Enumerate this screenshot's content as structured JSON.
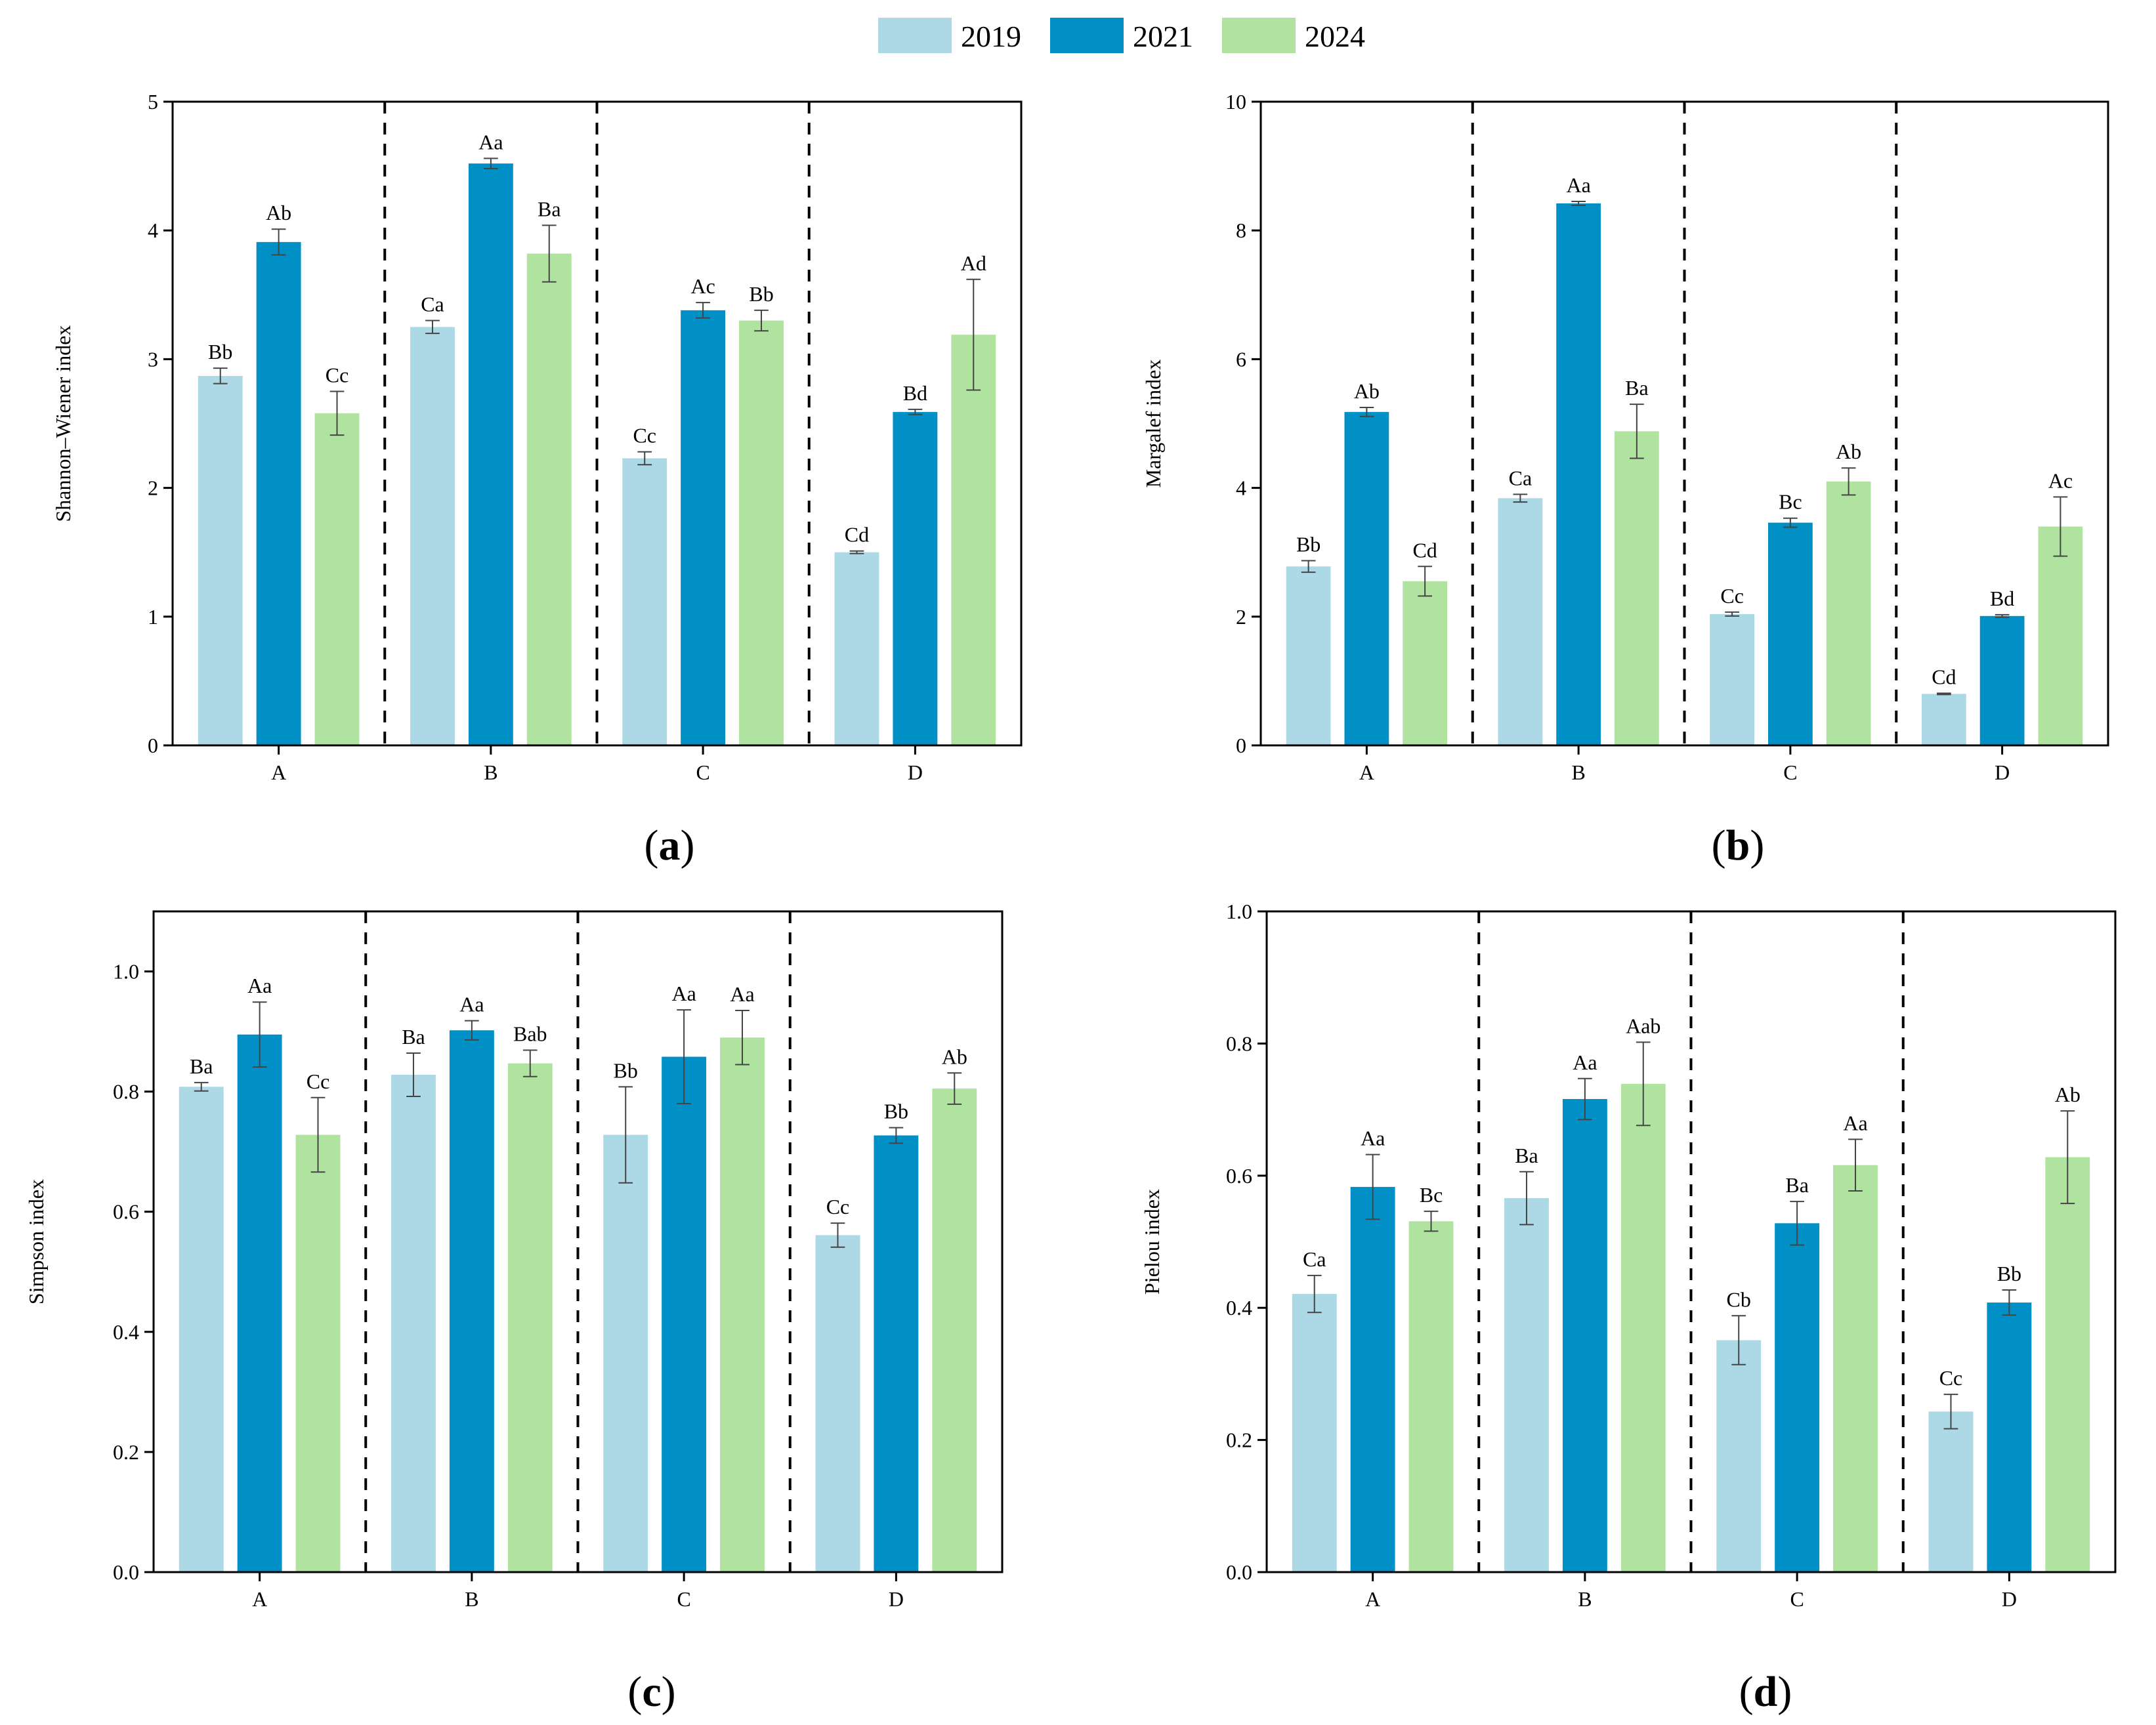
{
  "colors": {
    "2019": "#add8e6",
    "2021": "#0090c6",
    "2024": "#b0e3a0"
  },
  "legend": [
    {
      "label": "2019",
      "color": "#add8e6"
    },
    {
      "label": "2021",
      "color": "#0090c6"
    },
    {
      "label": "2024",
      "color": "#b0e3a0"
    }
  ],
  "chart_data": [
    {
      "type": "bar",
      "panel": "a",
      "panel_label": "a",
      "ylabel": "Shannon–Wiener index",
      "ylim": [
        0,
        5
      ],
      "yticks": [
        0,
        1,
        2,
        3,
        4,
        5
      ],
      "tick_decimals": 0,
      "categories": [
        "A",
        "B",
        "C",
        "D"
      ],
      "series": [
        {
          "name": "2019",
          "values": [
            2.87,
            3.25,
            2.23,
            1.5
          ],
          "errors": [
            0.06,
            0.05,
            0.05,
            0.01
          ],
          "labels": [
            "Bb",
            "Ca",
            "Cc",
            "Cd"
          ]
        },
        {
          "name": "2021",
          "values": [
            3.91,
            4.52,
            3.38,
            2.59
          ],
          "errors": [
            0.1,
            0.04,
            0.06,
            0.02
          ],
          "labels": [
            "Ab",
            "Aa",
            "Ac",
            "Bd"
          ]
        },
        {
          "name": "2024",
          "values": [
            2.58,
            3.82,
            3.3,
            3.19
          ],
          "errors": [
            0.17,
            0.22,
            0.08,
            0.43
          ],
          "labels": [
            "Cc",
            "Ba",
            "Bb",
            "Ad"
          ]
        }
      ]
    },
    {
      "type": "bar",
      "panel": "b",
      "panel_label": "b",
      "ylabel": "Margalef index",
      "ylim": [
        0,
        10
      ],
      "yticks": [
        0,
        2,
        4,
        6,
        8,
        10
      ],
      "tick_decimals": 0,
      "categories": [
        "A",
        "B",
        "C",
        "D"
      ],
      "series": [
        {
          "name": "2019",
          "values": [
            2.78,
            3.84,
            2.04,
            0.8
          ],
          "errors": [
            0.09,
            0.06,
            0.03,
            0.01
          ],
          "labels": [
            "Bb",
            "Ca",
            "Cc",
            "Cd"
          ]
        },
        {
          "name": "2021",
          "values": [
            5.18,
            8.42,
            3.46,
            2.01
          ],
          "errors": [
            0.07,
            0.03,
            0.07,
            0.02
          ],
          "labels": [
            "Ab",
            "Aa",
            "Bc",
            "Bd"
          ]
        },
        {
          "name": "2024",
          "values": [
            2.55,
            4.88,
            4.1,
            3.4
          ],
          "errors": [
            0.23,
            0.42,
            0.21,
            0.46
          ],
          "labels": [
            "Cd",
            "Ba",
            "Ab",
            "Ac"
          ]
        }
      ]
    },
    {
      "type": "bar",
      "panel": "c",
      "panel_label": "c",
      "ylabel": "Simpson index",
      "ylim": [
        0,
        1.1
      ],
      "yticks": [
        0.0,
        0.2,
        0.4,
        0.6,
        0.8,
        1.0
      ],
      "tick_decimals": 1,
      "categories": [
        "A",
        "B",
        "C",
        "D"
      ],
      "series": [
        {
          "name": "2019",
          "values": [
            0.808,
            0.828,
            0.728,
            0.561
          ],
          "errors": [
            0.007,
            0.036,
            0.08,
            0.02
          ],
          "labels": [
            "Ba",
            "Ba",
            "Bb",
            "Cc"
          ]
        },
        {
          "name": "2021",
          "values": [
            0.895,
            0.902,
            0.858,
            0.727
          ],
          "errors": [
            0.054,
            0.016,
            0.078,
            0.013
          ],
          "labels": [
            "Aa",
            "Aa",
            "Aa",
            "Bb"
          ]
        },
        {
          "name": "2024",
          "values": [
            0.728,
            0.847,
            0.89,
            0.805
          ],
          "errors": [
            0.062,
            0.022,
            0.045,
            0.026
          ],
          "labels": [
            "Cc",
            "Bab",
            "Aa",
            "Ab"
          ]
        }
      ]
    },
    {
      "type": "bar",
      "panel": "d",
      "panel_label": "d",
      "ylabel": "Pielou index",
      "ylim": [
        0,
        1.0
      ],
      "yticks": [
        0.0,
        0.2,
        0.4,
        0.6,
        0.8,
        1.0
      ],
      "tick_decimals": 1,
      "categories": [
        "A",
        "B",
        "C",
        "D"
      ],
      "series": [
        {
          "name": "2019",
          "values": [
            0.421,
            0.566,
            0.351,
            0.243
          ],
          "errors": [
            0.028,
            0.04,
            0.037,
            0.026
          ],
          "labels": [
            "Ca",
            "Ba",
            "Cb",
            "Cc"
          ]
        },
        {
          "name": "2021",
          "values": [
            0.583,
            0.716,
            0.528,
            0.408
          ],
          "errors": [
            0.049,
            0.031,
            0.033,
            0.019
          ],
          "labels": [
            "Aa",
            "Aa",
            "Ba",
            "Bb"
          ]
        },
        {
          "name": "2024",
          "values": [
            0.531,
            0.739,
            0.616,
            0.628
          ],
          "errors": [
            0.015,
            0.063,
            0.039,
            0.07
          ],
          "labels": [
            "Bc",
            "Aab",
            "Aa",
            "Ab"
          ]
        }
      ]
    }
  ]
}
